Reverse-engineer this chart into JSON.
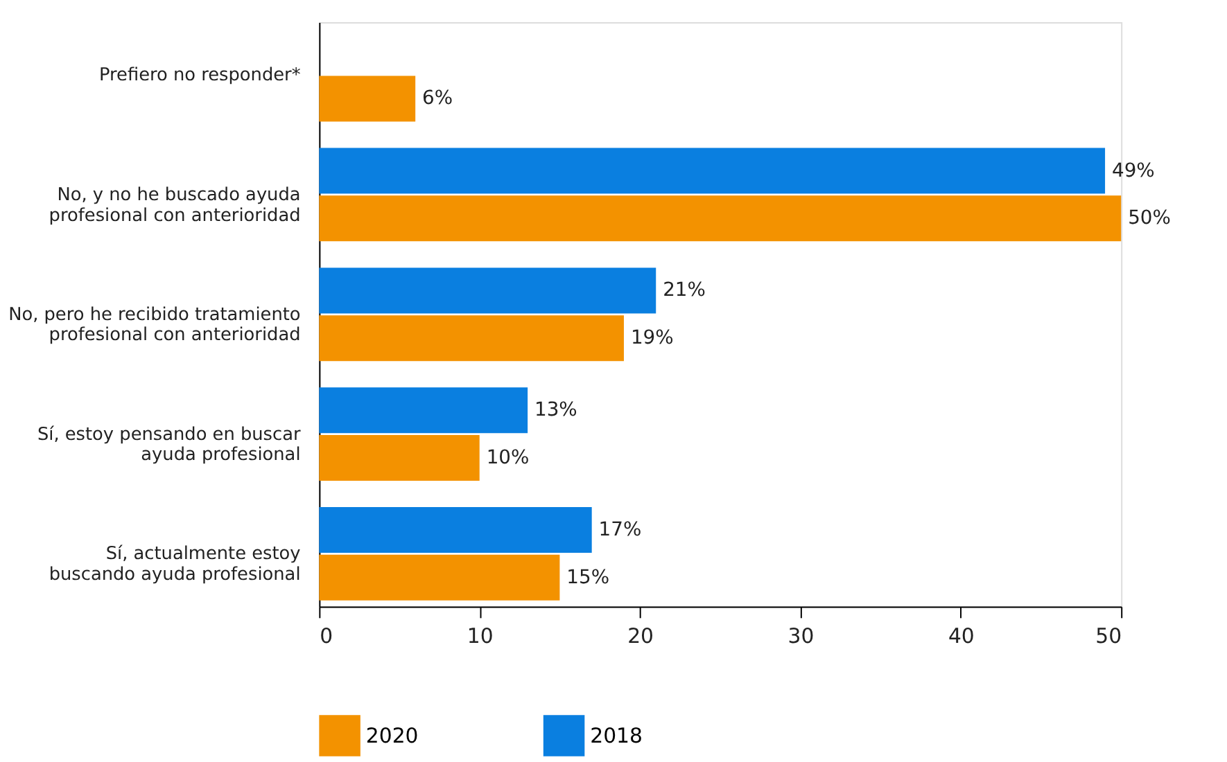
{
  "chart_data": {
    "type": "bar",
    "orientation": "horizontal",
    "categories": [
      "Prefiero no responder*",
      "No, y no he buscado ayuda\nprofesional con anterioridad",
      "No, pero he recibido tratamiento\nprofesional con anterioridad",
      "Sí, estoy pensando en buscar\nayuda profesional",
      "Sí, actualmente estoy\nbuscando ayuda profesional"
    ],
    "series": [
      {
        "name": "2020",
        "color": "#f39200",
        "values": [
          6,
          50,
          19,
          10,
          15
        ],
        "value_labels": [
          "6%",
          "50%",
          "19%",
          "10%",
          "15%"
        ]
      },
      {
        "name": "2018",
        "color": "#0a7fe0",
        "values": [
          null,
          49,
          21,
          13,
          17
        ],
        "value_labels": [
          null,
          "49%",
          "21%",
          "13%",
          "17%"
        ]
      }
    ],
    "xlim": [
      0,
      50
    ],
    "xticks": [
      0,
      10,
      20,
      30,
      40,
      50
    ],
    "grid": false,
    "legend": "bottom"
  }
}
